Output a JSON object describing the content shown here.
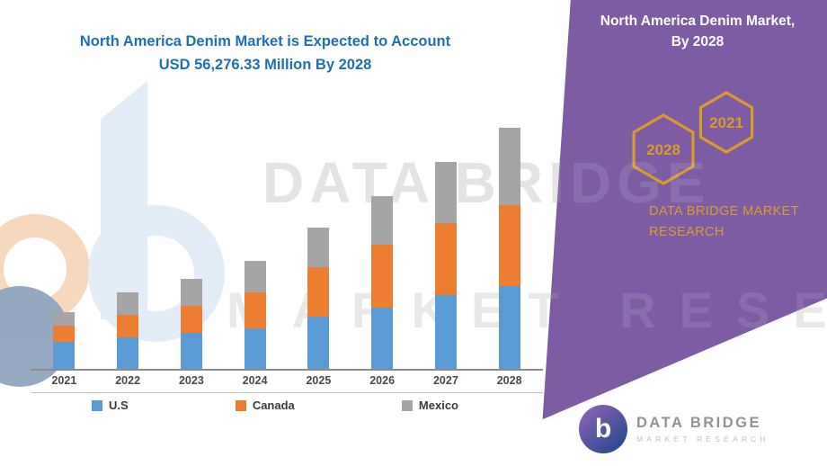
{
  "chart_title": {
    "line1": "North America Denim Market is Expected to Account",
    "line2": "USD 56,276.33 Million By 2028"
  },
  "side_panel": {
    "title_line1": "North America Denim Market,",
    "title_line2": "By 2028",
    "hexagon_left": "2028",
    "hexagon_right": "2021",
    "brand_line1": "DATA BRIDGE MARKET",
    "brand_line2": "RESEARCH"
  },
  "watermark": {
    "line1": "DATA BRIDGE",
    "line2": "MARKET RESEARCH"
  },
  "footer_logo": {
    "glyph": "b",
    "name_line": "DATA BRIDGE",
    "sub_line": "MARKET RESEARCH"
  },
  "colors": {
    "purple": "#7d5ca3",
    "gold": "#d99b2d",
    "title_blue": "#1e6fb5"
  },
  "chart_data": {
    "type": "bar",
    "stacked": true,
    "title": "North America Denim Market is Expected to Account USD 56,276.33 Million By 2028",
    "unit": "USD Million",
    "categories": [
      "2021",
      "2022",
      "2023",
      "2024",
      "2025",
      "2026",
      "2027",
      "2028"
    ],
    "series": [
      {
        "name": "U.S",
        "color": "#5b9bd5",
        "values": [
          6300,
          7350,
          8400,
          9450,
          12180,
          14280,
          17220,
          19320
        ]
      },
      {
        "name": "Canada",
        "color": "#ed7d31",
        "values": [
          3780,
          5250,
          6300,
          8400,
          11550,
          14700,
          16800,
          18900
        ]
      },
      {
        "name": "Mexico",
        "color": "#a5a5a5",
        "values": [
          3150,
          5250,
          6300,
          7350,
          9240,
          11340,
          14280,
          18056.33
        ]
      }
    ],
    "totals": [
      13230,
      17850,
      21000,
      25200,
      32970,
      40320,
      48300,
      56276.33
    ],
    "ylim": [
      0,
      60000
    ],
    "grid": false,
    "legend_position": "bottom"
  }
}
